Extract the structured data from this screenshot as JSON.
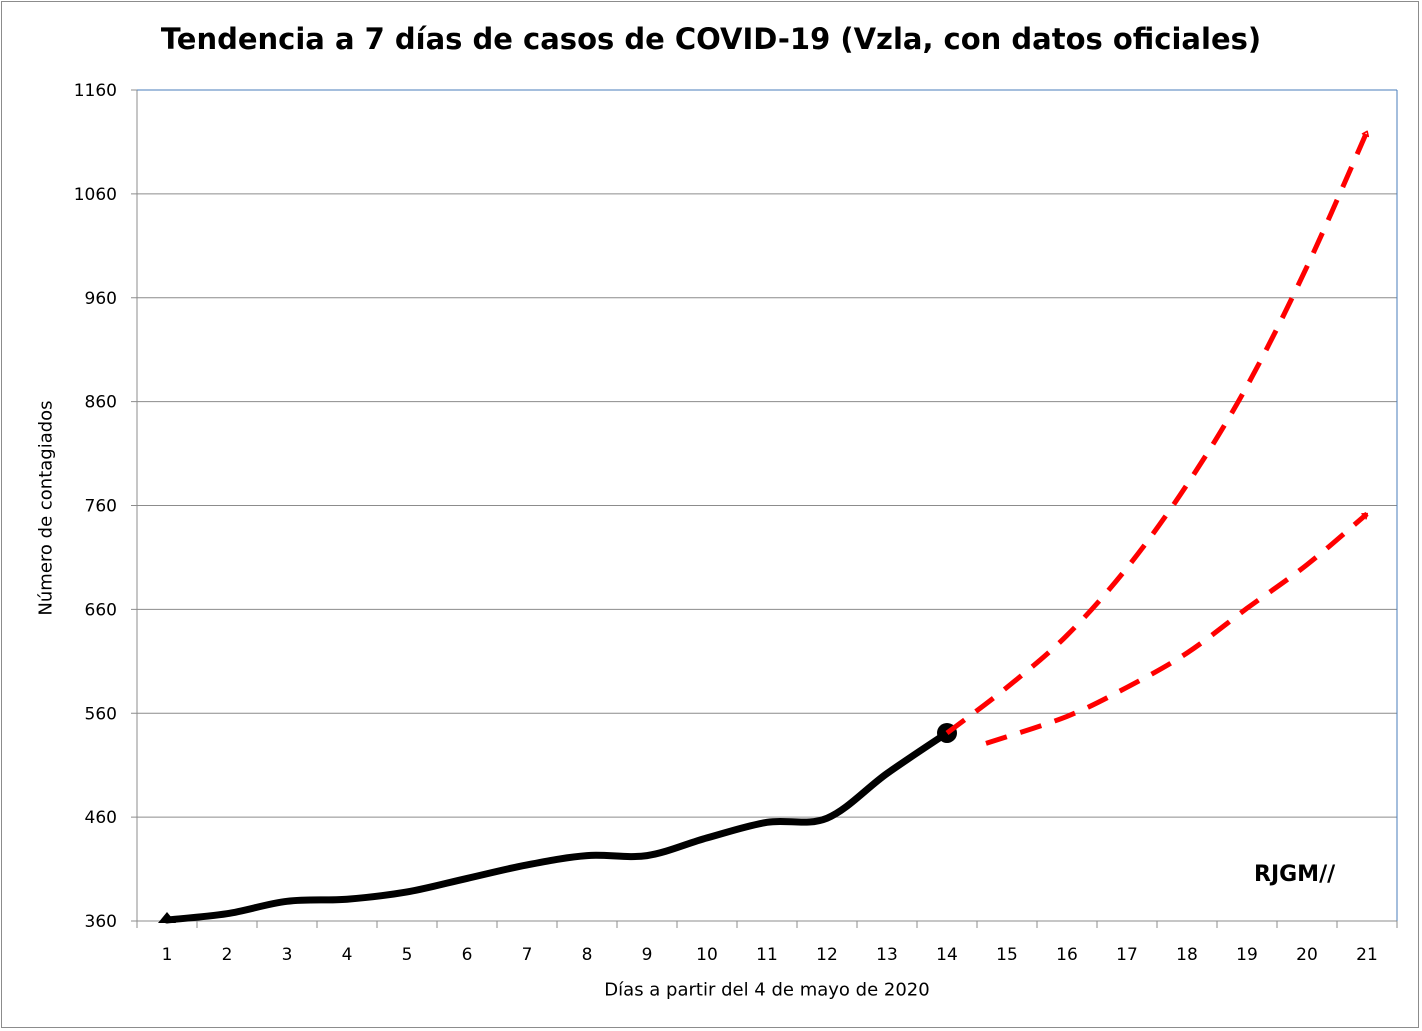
{
  "chart_data": {
    "type": "line",
    "title": "Tendencia a 7 días de casos de COVID-19 (Vzla, con datos oficiales)",
    "xlabel": "Días a partir del 4 de mayo de 2020",
    "ylabel": "Número de contagiados",
    "categories": [
      "1",
      "2",
      "3",
      "4",
      "5",
      "6",
      "7",
      "8",
      "9",
      "10",
      "11",
      "12",
      "13",
      "14",
      "15",
      "16",
      "17",
      "18",
      "19",
      "20",
      "21"
    ],
    "ylim": [
      360,
      1160
    ],
    "yticks": [
      360,
      460,
      560,
      660,
      760,
      860,
      960,
      1060,
      1160
    ],
    "grid": true,
    "series": [
      {
        "color": "#000000",
        "style": "solid",
        "x": [
          1,
          2,
          3,
          4,
          5,
          6,
          7,
          8,
          9,
          10,
          11,
          12,
          13,
          14
        ],
        "values": [
          361,
          367,
          379,
          381,
          388,
          401,
          414,
          423,
          423,
          440,
          455,
          459,
          502,
          541
        ]
      },
      {
        "color": "#ff0000",
        "style": "dashed-arrow",
        "x": [
          14,
          15,
          16,
          17,
          18,
          19,
          20,
          21
        ],
        "values": [
          541,
          585,
          635,
          700,
          780,
          875,
          990,
          1120
        ]
      },
      {
        "color": "#ff0000",
        "style": "dashed-arrow",
        "x": [
          14.65,
          16,
          17,
          18,
          19,
          20,
          21
        ],
        "values": [
          531,
          557,
          585,
          618,
          661,
          703,
          752
        ]
      }
    ],
    "annotations": [
      "RJGM//"
    ]
  }
}
